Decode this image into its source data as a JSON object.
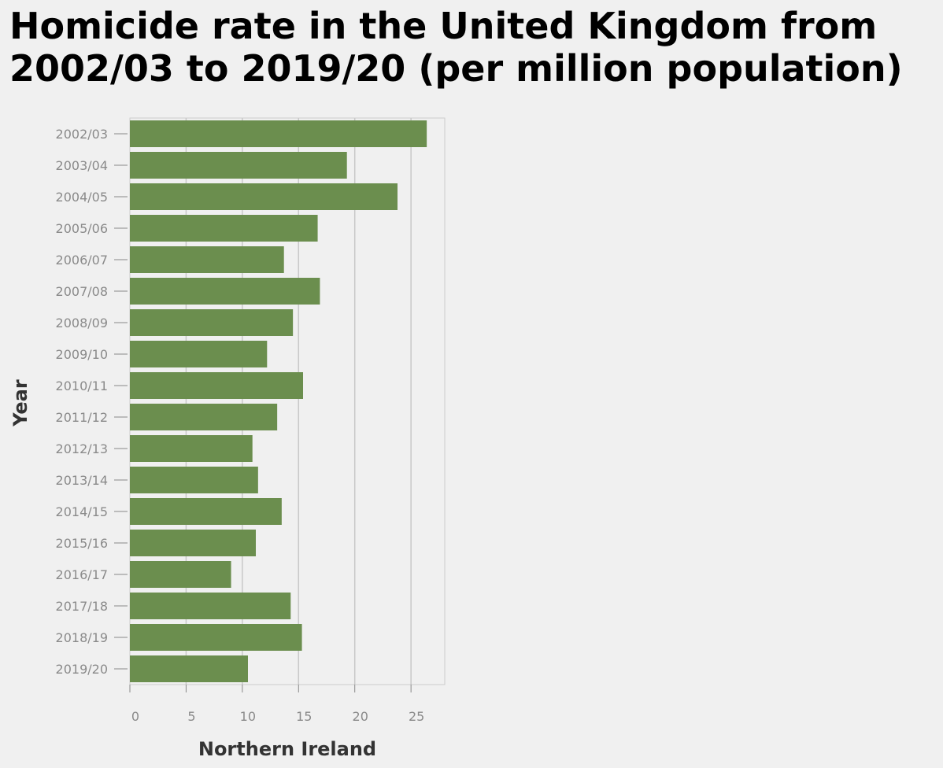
{
  "chart_data": {
    "type": "bar",
    "orientation": "horizontal",
    "title": "Homicide rate in the United Kingdom from 2002/03 to 2019/20 (per million population)",
    "xlabel": "Northern Ireland",
    "ylabel": "Year",
    "categories": [
      "2002/03",
      "2003/04",
      "2004/05",
      "2005/06",
      "2006/07",
      "2007/08",
      "2008/09",
      "2009/10",
      "2010/11",
      "2011/12",
      "2012/13",
      "2013/14",
      "2014/15",
      "2015/16",
      "2016/17",
      "2017/18",
      "2018/19",
      "2019/20"
    ],
    "values": [
      26.4,
      19.3,
      23.8,
      16.7,
      13.7,
      16.9,
      14.5,
      12.2,
      15.4,
      13.1,
      10.9,
      11.4,
      13.5,
      11.2,
      9.0,
      14.3,
      15.3,
      10.5
    ],
    "xlim": [
      0,
      28
    ],
    "xticks": [
      0,
      5,
      10,
      15,
      20,
      25
    ],
    "grid": true,
    "bar_color": "#6b8e4e",
    "grid_color": "#c8c8c8"
  }
}
